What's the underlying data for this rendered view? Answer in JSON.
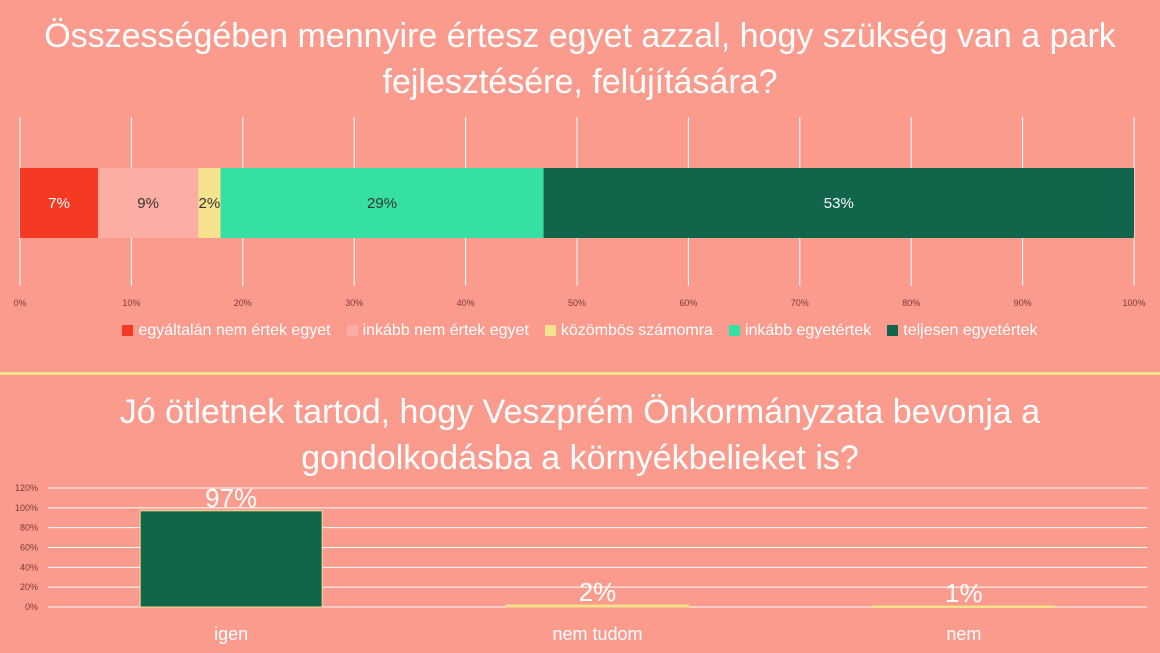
{
  "chart_data": [
    {
      "type": "bar",
      "orientation": "horizontal-stacked-100",
      "title": "Összességében mennyire értesz egyet azzal, hogy szükség van a park fejlesztésére, felújítására?",
      "series": [
        {
          "name": "egyáltalán nem értek egyet",
          "value": 7,
          "label": "7%",
          "color": "#f43a22"
        },
        {
          "name": "inkább nem értek egyet",
          "value": 9,
          "label": "9%",
          "color": "#fcaea4"
        },
        {
          "name": "közömbös számomra",
          "value": 2,
          "label": "2%",
          "color": "#f4e38c"
        },
        {
          "name": "inkább egyetértek",
          "value": 29,
          "label": "29%",
          "color": "#36e0a3"
        },
        {
          "name": "teljesen egyetértek",
          "value": 53,
          "label": "53%",
          "color": "#10654a"
        }
      ],
      "xlim": [
        0,
        100
      ],
      "xticks": [
        "0%",
        "10%",
        "20%",
        "30%",
        "40%",
        "50%",
        "60%",
        "70%",
        "80%",
        "90%",
        "100%"
      ],
      "grid": true,
      "legend": "bottom"
    },
    {
      "type": "bar",
      "title": "Jó ötletnek tartod, hogy Veszprém Önkormányzata bevonja a gondolkodásba a környékbelieket is?",
      "categories": [
        "igen",
        "nem tudom",
        "nem"
      ],
      "values": [
        97,
        2,
        1
      ],
      "labels": [
        "97%",
        "2%",
        "1%"
      ],
      "colors": [
        "#10654a",
        "#f4e38c",
        "#f4e38c"
      ],
      "ylim": [
        0,
        120
      ],
      "yticks": [
        "0%",
        "20%",
        "40%",
        "60%",
        "80%",
        "100%",
        "120%"
      ],
      "grid": true
    }
  ]
}
